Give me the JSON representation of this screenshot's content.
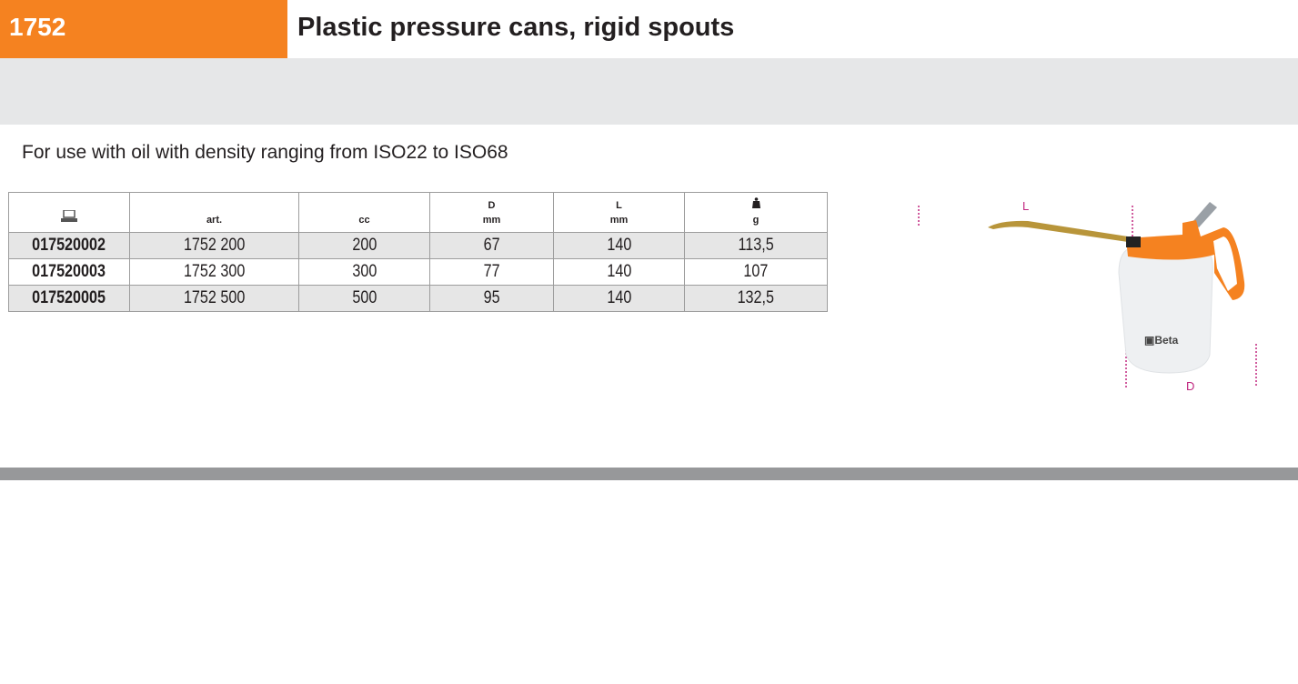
{
  "header": {
    "code": "1752",
    "title": "Plastic pressure cans, rigid spouts"
  },
  "description": "For use with oil with density ranging from ISO22 to ISO68",
  "table": {
    "columns": [
      {
        "icon": "order-code-icon",
        "label": "",
        "unit": ""
      },
      {
        "label": "",
        "unit": "art."
      },
      {
        "label": "",
        "unit": "cc"
      },
      {
        "label": "D",
        "unit": "mm"
      },
      {
        "label": "L",
        "unit": "mm"
      },
      {
        "icon": "weight-icon",
        "label": "",
        "unit": "g"
      }
    ],
    "rows": [
      [
        "017520002",
        "1752 200",
        "200",
        "67",
        "140",
        "113,5"
      ],
      [
        "017520003",
        "1752 300",
        "300",
        "77",
        "140",
        "107"
      ],
      [
        "017520005",
        "1752 500",
        "500",
        "95",
        "140",
        "132,5"
      ]
    ]
  },
  "image": {
    "dimension_labels": {
      "length": "L",
      "diameter": "D"
    },
    "brand": "Beta",
    "colors": {
      "accent": "#f58220",
      "dimension": "#c0267f"
    }
  }
}
